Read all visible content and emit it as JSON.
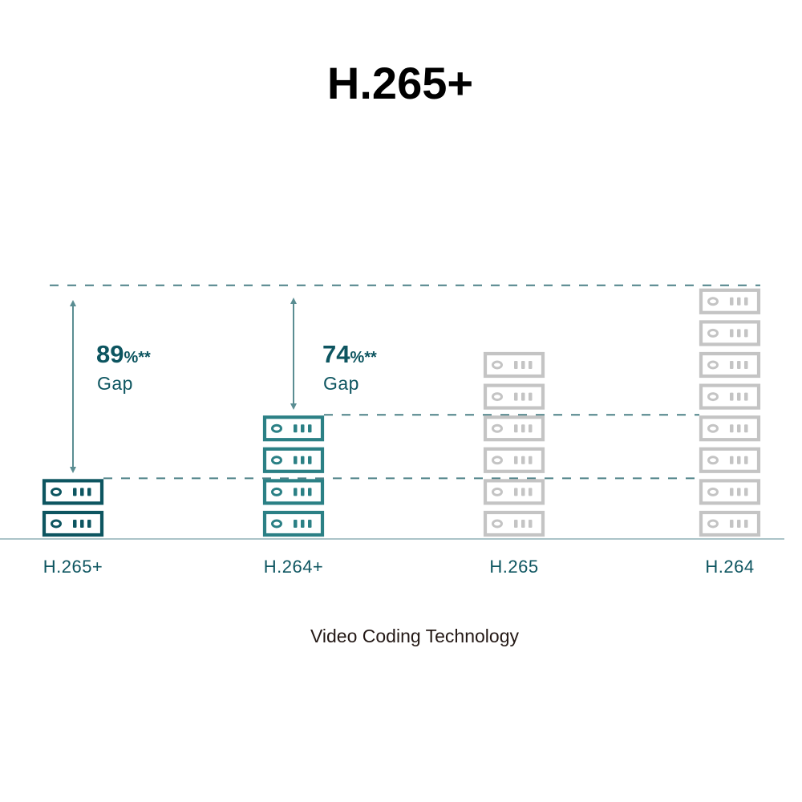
{
  "chart_data": {
    "type": "bar",
    "title": "H.265+",
    "xlabel": "Video Coding Technology",
    "ylabel": "",
    "categories": [
      "H.265+",
      "H.264+",
      "H.265",
      "H.264"
    ],
    "values": [
      2,
      4,
      6,
      8
    ],
    "ylim": [
      0,
      8
    ],
    "mark": "stacked server icons",
    "grid": false,
    "annotations": [
      {
        "from": "H.265+",
        "value": "89",
        "suffix": "%**",
        "label": "Gap"
      },
      {
        "from": "H.264+",
        "value": "74",
        "suffix": "%**",
        "label": "Gap"
      }
    ],
    "colors": {
      "H.265+": "#0d5560",
      "H.264+": "#2b8085",
      "H.265": "#c4c4c4",
      "H.264": "#c4c4c4",
      "guides": "#4d8187",
      "axis": "#8fb0b5"
    }
  }
}
